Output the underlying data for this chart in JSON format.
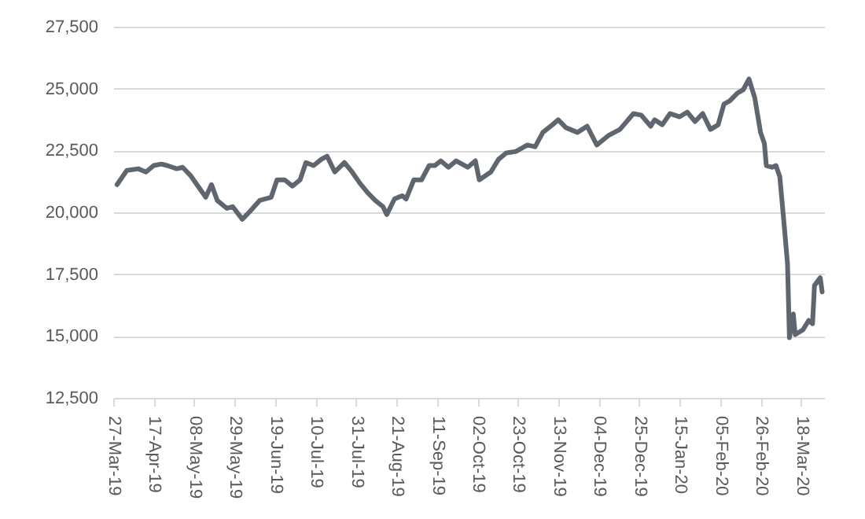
{
  "chart_data": {
    "type": "line",
    "x": [
      "2019-03-29",
      "2019-04-03",
      "2019-04-09",
      "2019-04-13",
      "2019-04-17",
      "2019-04-21",
      "2019-04-24",
      "2019-04-29",
      "2019-05-02",
      "2019-05-06",
      "2019-05-10",
      "2019-05-14",
      "2019-05-17",
      "2019-05-20",
      "2019-05-25",
      "2019-05-28",
      "2019-06-02",
      "2019-06-06",
      "2019-06-11",
      "2019-06-17",
      "2019-06-20",
      "2019-06-24",
      "2019-06-28",
      "2019-07-02",
      "2019-07-05",
      "2019-07-09",
      "2019-07-13",
      "2019-07-16",
      "2019-07-20",
      "2019-07-25",
      "2019-07-29",
      "2019-08-02",
      "2019-08-06",
      "2019-08-10",
      "2019-08-14",
      "2019-08-16",
      "2019-08-20",
      "2019-08-24",
      "2019-08-26",
      "2019-08-30",
      "2019-09-03",
      "2019-09-07",
      "2019-09-10",
      "2019-09-13",
      "2019-09-17",
      "2019-09-21",
      "2019-09-27",
      "2019-10-01",
      "2019-10-03",
      "2019-10-09",
      "2019-10-13",
      "2019-10-17",
      "2019-10-22",
      "2019-10-28",
      "2019-11-01",
      "2019-11-05",
      "2019-11-10",
      "2019-11-13",
      "2019-11-17",
      "2019-11-23",
      "2019-11-28",
      "2019-12-03",
      "2019-12-09",
      "2019-12-15",
      "2019-12-22",
      "2019-12-26",
      "2019-12-31",
      "2020-01-02",
      "2020-01-06",
      "2020-01-10",
      "2020-01-15",
      "2020-01-19",
      "2020-01-23",
      "2020-01-27",
      "2020-01-31",
      "2020-02-04",
      "2020-02-07",
      "2020-02-10",
      "2020-02-14",
      "2020-02-17",
      "2020-02-20",
      "2020-02-23",
      "2020-02-26",
      "2020-02-28",
      "2020-02-29",
      "2020-03-03",
      "2020-03-05",
      "2020-03-07",
      "2020-03-09",
      "2020-03-11",
      "2020-03-12",
      "2020-03-14",
      "2020-03-15",
      "2020-03-19",
      "2020-03-22",
      "2020-03-24",
      "2020-03-25",
      "2020-03-28",
      "2020-03-29"
    ],
    "series": [
      {
        "color": "#5f6670",
        "values": [
          21120,
          21690,
          21760,
          21630,
          21890,
          21950,
          21890,
          21760,
          21820,
          21500,
          21060,
          20610,
          21120,
          20480,
          20160,
          20230,
          19720,
          20040,
          20480,
          20610,
          21310,
          21310,
          21060,
          21310,
          22010,
          21890,
          22140,
          22270,
          21630,
          22010,
          21630,
          21180,
          20800,
          20480,
          20230,
          19910,
          20540,
          20670,
          20540,
          21310,
          21310,
          21890,
          21890,
          22080,
          21820,
          22080,
          21820,
          22080,
          21310,
          21630,
          22140,
          22400,
          22460,
          22720,
          22650,
          23230,
          23540,
          23740,
          23420,
          23230,
          23480,
          22720,
          23100,
          23350,
          23990,
          23930,
          23480,
          23740,
          23540,
          23990,
          23860,
          24050,
          23670,
          23990,
          23350,
          23540,
          24370,
          24500,
          24820,
          24950,
          25390,
          24630,
          23230,
          22780,
          21890,
          21820,
          21890,
          21440,
          19720,
          17930,
          14930,
          15890,
          15060,
          15250,
          15630,
          15500,
          17040,
          17360,
          16780
        ]
      }
    ],
    "xlim": [
      "2019-03-27",
      "2020-03-30"
    ],
    "xticks": [
      {
        "value": "2019-03-27",
        "label": "27-Mar-19"
      },
      {
        "value": "2019-04-17",
        "label": "17-Apr-19"
      },
      {
        "value": "2019-05-08",
        "label": "08-May-19"
      },
      {
        "value": "2019-05-29",
        "label": "29-May-19"
      },
      {
        "value": "2019-06-19",
        "label": "19-Jun-19"
      },
      {
        "value": "2019-07-10",
        "label": "10-Jul-19"
      },
      {
        "value": "2019-07-31",
        "label": "31-Jul-19"
      },
      {
        "value": "2019-08-21",
        "label": "21-Aug-19"
      },
      {
        "value": "2019-09-11",
        "label": "11-Sep-19"
      },
      {
        "value": "2019-10-02",
        "label": "02-Oct-19"
      },
      {
        "value": "2019-10-23",
        "label": "23-Oct-19"
      },
      {
        "value": "2019-11-13",
        "label": "13-Nov-19"
      },
      {
        "value": "2019-12-04",
        "label": "04-Dec-19"
      },
      {
        "value": "2019-12-25",
        "label": "25-Dec-19"
      },
      {
        "value": "2020-01-15",
        "label": "15-Jan-20"
      },
      {
        "value": "2020-02-05",
        "label": "05-Feb-20"
      },
      {
        "value": "2020-02-26",
        "label": "26-Feb-20"
      },
      {
        "value": "2020-03-18",
        "label": "18-Mar-20"
      }
    ],
    "ylim": [
      12500,
      27500
    ],
    "yticks": [
      {
        "value": 12500,
        "label": "12,500"
      },
      {
        "value": 15000,
        "label": "15,000"
      },
      {
        "value": 17500,
        "label": "17,500"
      },
      {
        "value": 20000,
        "label": "20,000"
      },
      {
        "value": 22500,
        "label": "22,500"
      },
      {
        "value": 25000,
        "label": "25,000"
      },
      {
        "value": 27500,
        "label": "27,500"
      }
    ],
    "grid": "y",
    "legend": false,
    "marker": "none",
    "line_style": "solid"
  }
}
